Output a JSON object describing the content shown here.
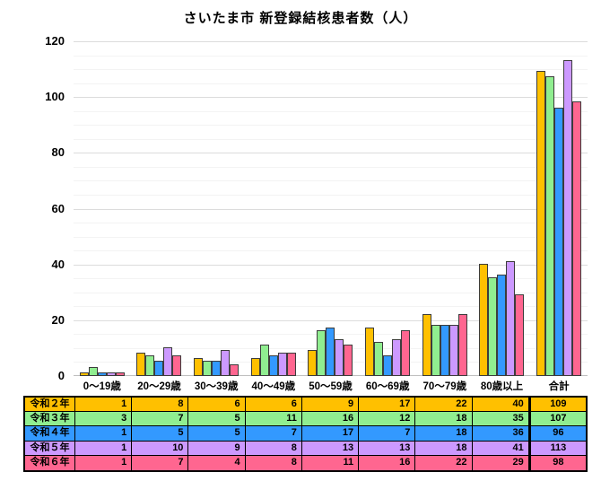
{
  "title": "さいたま市 新登録結核患者数（人）",
  "chart_data": {
    "type": "bar",
    "title": "さいたま市 新登録結核患者数（人）",
    "categories": [
      "0～19歳",
      "20～29歳",
      "30～39歳",
      "40～49歳",
      "50～59歳",
      "60～69歳",
      "70～79歳",
      "80歳以上",
      "合計"
    ],
    "series": [
      {
        "name": "令和２年",
        "color": "#FFC000",
        "values": [
          1,
          8,
          6,
          6,
          9,
          17,
          22,
          40,
          109
        ]
      },
      {
        "name": "令和３年",
        "color": "#90EE90",
        "values": [
          3,
          7,
          5,
          11,
          16,
          12,
          18,
          35,
          107
        ]
      },
      {
        "name": "令和４年",
        "color": "#3399FF",
        "values": [
          1,
          5,
          5,
          7,
          17,
          7,
          18,
          36,
          96
        ]
      },
      {
        "name": "令和５年",
        "color": "#CC99FF",
        "values": [
          1,
          10,
          9,
          8,
          13,
          13,
          18,
          41,
          113
        ]
      },
      {
        "name": "令和６年",
        "color": "#FF6690",
        "values": [
          1,
          7,
          4,
          8,
          11,
          16,
          22,
          29,
          98
        ]
      }
    ],
    "ylabel": "",
    "xlabel": "",
    "ylim": [
      0,
      120
    ],
    "y_tick_labels": [
      0,
      20,
      40,
      60,
      80,
      100,
      120
    ],
    "y_major_step": 20,
    "y_minor_step": 5,
    "grid": "horizontal, major and minor",
    "legend_position": "none (colored data table below chart serves as legend)"
  },
  "colors": {
    "background": "#FFFFFF",
    "text": "#000000",
    "bar_border": "#3C3C3C",
    "grid_major": "#DCDCDC",
    "grid_minor": "#F3F3F3",
    "axis_baseline": "#BFBFBF",
    "table_border": "#000000"
  }
}
